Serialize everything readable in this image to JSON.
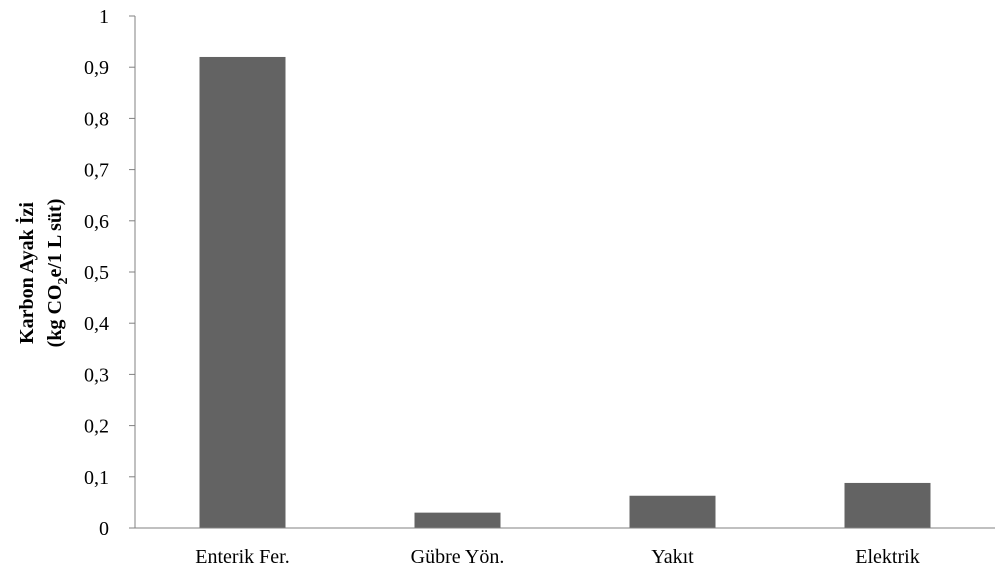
{
  "chart_data": {
    "type": "bar",
    "categories": [
      "Enterik Fer.",
      "Gübre Yön.",
      "Yakıt",
      "Elektrik"
    ],
    "values": [
      0.92,
      0.03,
      0.063,
      0.088
    ],
    "ylabel_line1": "Karbon Ayak İzi",
    "ylabel_line2_prefix": "(kg CO",
    "ylabel_line2_subscript": "2",
    "ylabel_line2_suffix": "e/1 L süt)",
    "ylim": [
      0,
      1
    ],
    "yticks": [
      "0",
      "0,1",
      "0,2",
      "0,3",
      "0,4",
      "0,5",
      "0,6",
      "0,7",
      "0,8",
      "0,9",
      "1"
    ],
    "grid": false,
    "bar_color": "#636363",
    "axis_color": "#808080"
  }
}
